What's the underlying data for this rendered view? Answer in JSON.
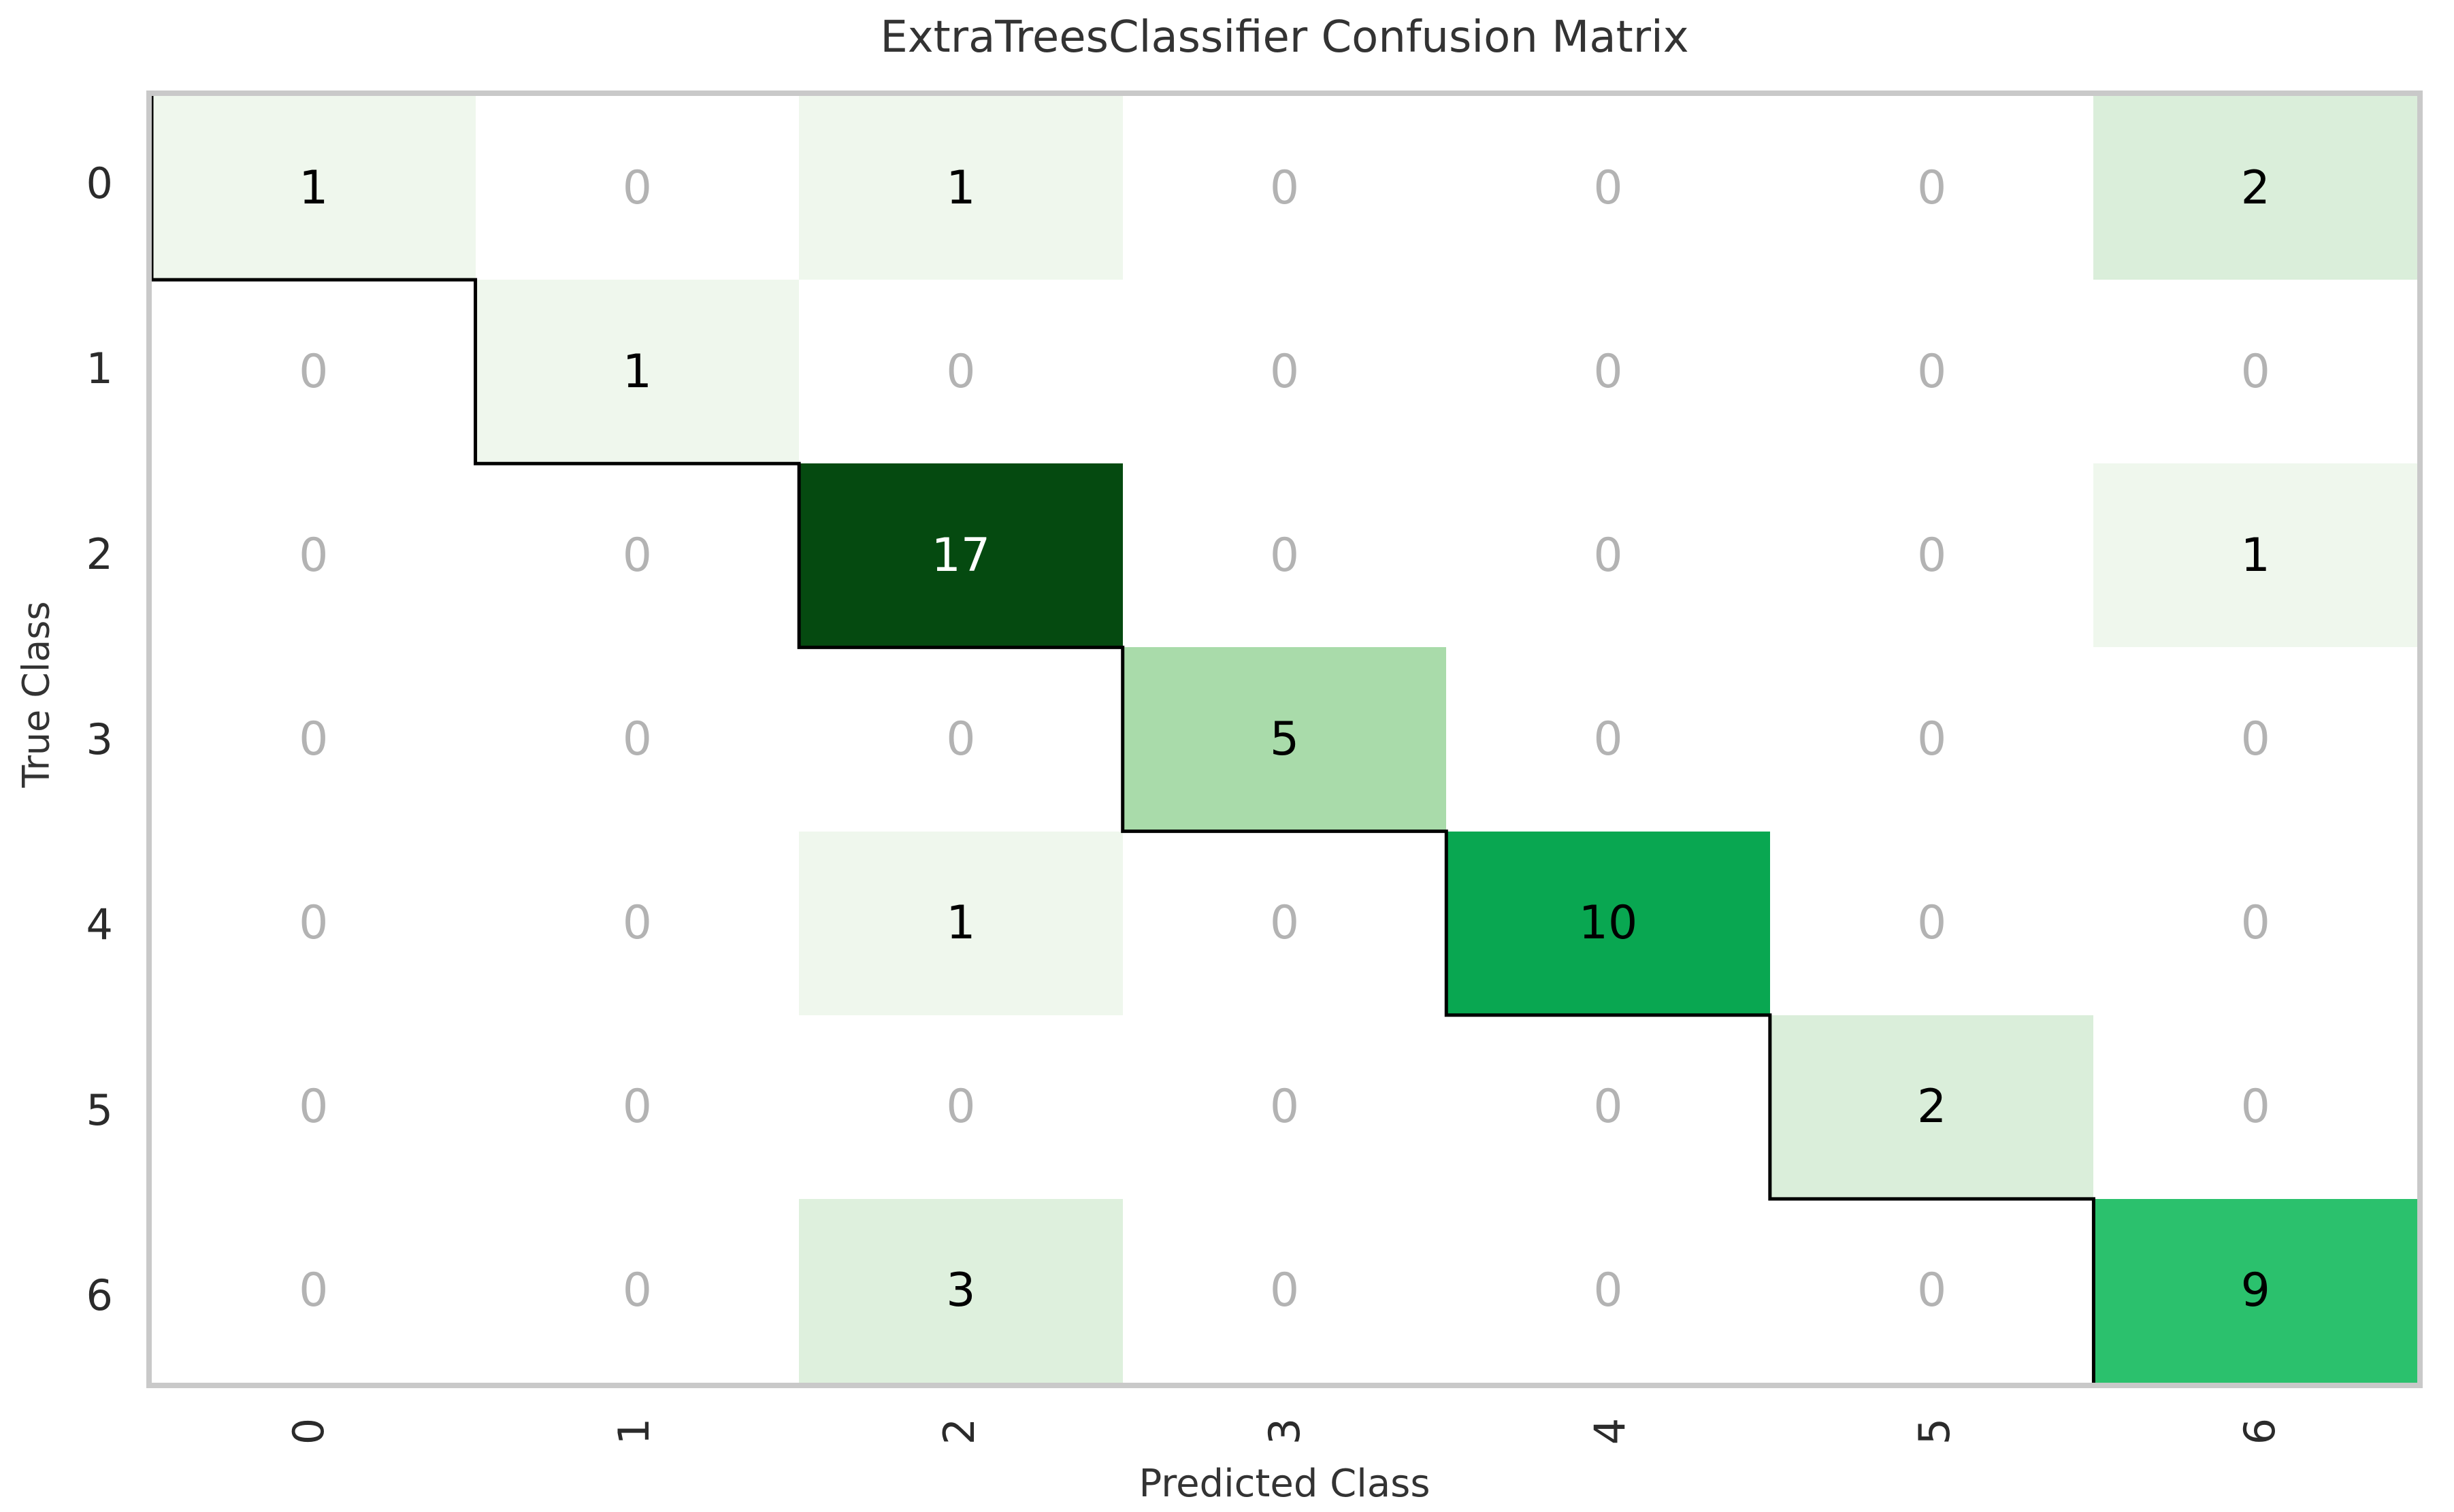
{
  "title": "ExtraTreesClassifier Confusion Matrix",
  "chart_data": {
    "type": "heatmap",
    "title": "ExtraTreesClassifier Confusion Matrix",
    "xlabel": "Predicted Class",
    "ylabel": "True Class",
    "x_tick_labels": [
      "0",
      "1",
      "2",
      "3",
      "4",
      "5",
      "6"
    ],
    "y_tick_labels": [
      "0",
      "1",
      "2",
      "3",
      "4",
      "5",
      "6"
    ],
    "matrix": [
      [
        1,
        0,
        1,
        0,
        0,
        0,
        2
      ],
      [
        0,
        1,
        0,
        0,
        0,
        0,
        0
      ],
      [
        0,
        0,
        17,
        0,
        0,
        0,
        1
      ],
      [
        0,
        0,
        0,
        5,
        0,
        0,
        0
      ],
      [
        0,
        0,
        1,
        0,
        10,
        0,
        0
      ],
      [
        0,
        0,
        0,
        0,
        0,
        2,
        0
      ],
      [
        0,
        0,
        3,
        0,
        0,
        0,
        9
      ]
    ],
    "value_colors": {
      "0": "#ffffff",
      "1": "#eff7ed",
      "2": "#daeeda",
      "3": "#def0dd",
      "5": "#a9dbaa",
      "9": "#2bc16d",
      "10": "#09a751",
      "17": "#054a10"
    },
    "white_text_values": [
      17
    ],
    "zero_text_color": "#b3b3b3",
    "value_text_color": "#000000",
    "diagonal_line_color": "#000000",
    "spine_color": "#c9c9c9",
    "grid": false,
    "legend": false,
    "axis_ranges": {
      "rows": 7,
      "cols": 7
    }
  }
}
